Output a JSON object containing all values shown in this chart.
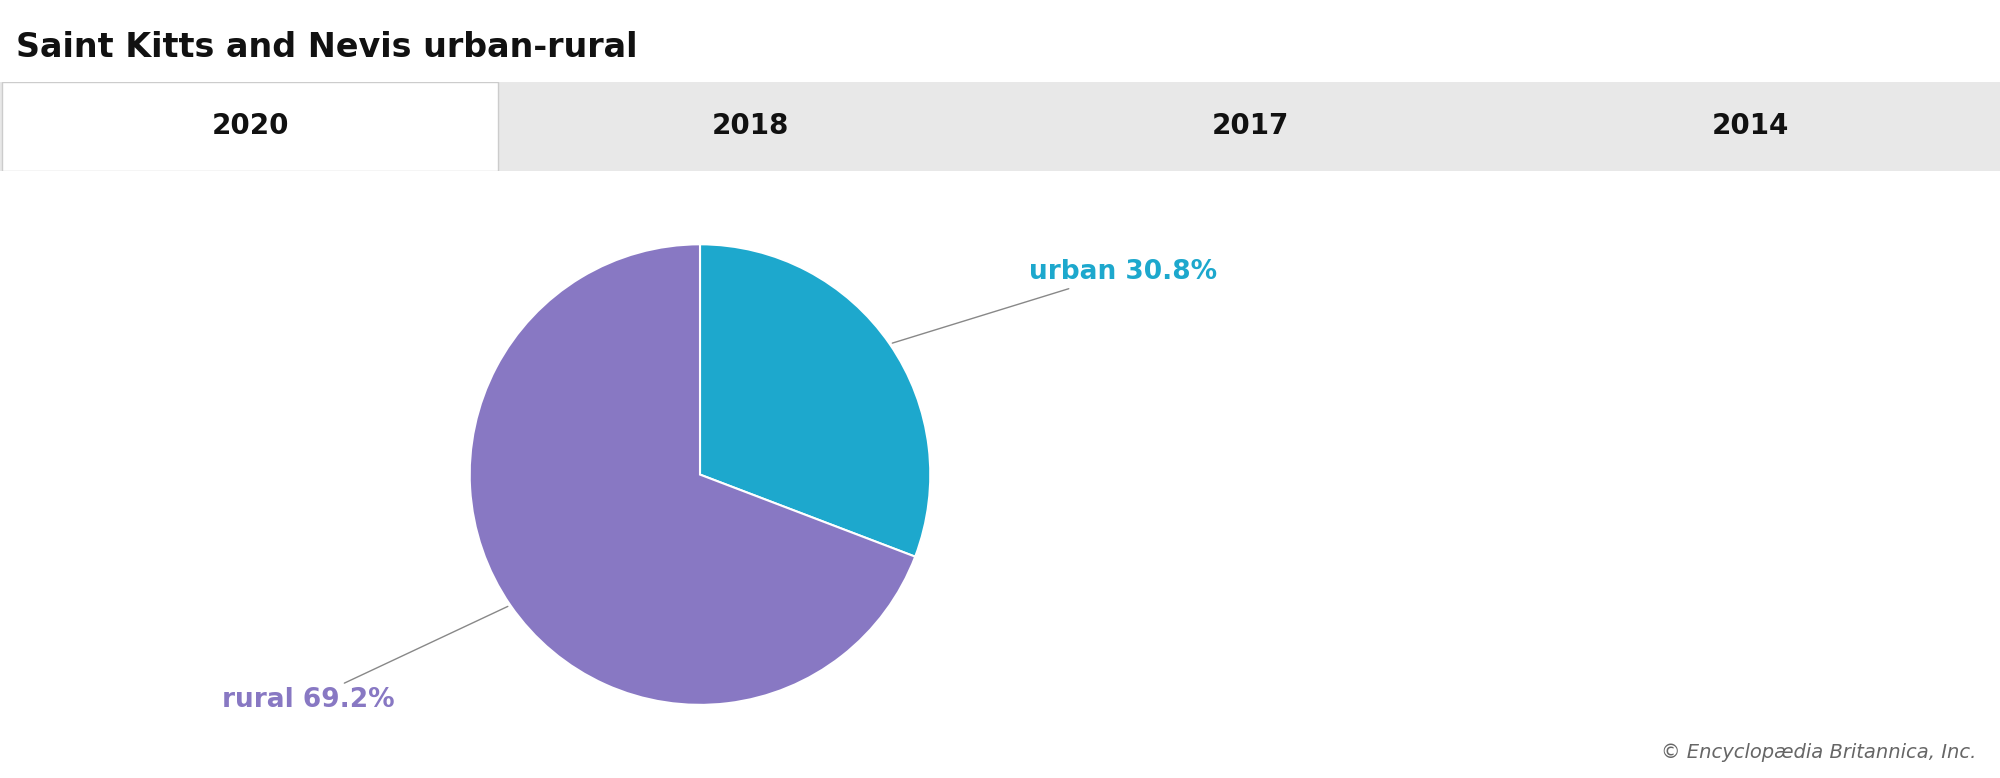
{
  "title": "Saint Kitts and Nevis urban-rural",
  "tab_labels": [
    "2020",
    "2018",
    "2017",
    "2014"
  ],
  "active_tab_index": 0,
  "pie_values": [
    30.8,
    69.2
  ],
  "pie_labels": [
    "urban",
    "rural"
  ],
  "pie_colors": [
    "#1da8cd",
    "#8878c3"
  ],
  "label_colors": [
    "#1da8cd",
    "#8878c3"
  ],
  "copyright_text": "© Encyclopædia Britannica, Inc.",
  "background_color": "#ffffff",
  "tab_bar_color": "#e8e8e8",
  "active_tab_color": "#ffffff",
  "title_fontsize": 24,
  "tab_fontsize": 20,
  "label_fontsize": 19,
  "copyright_fontsize": 14
}
